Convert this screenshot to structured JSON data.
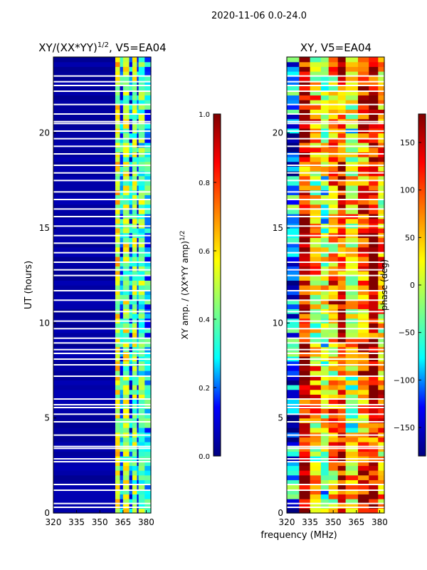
{
  "figure": {
    "suptitle": "2020-11-06 0.0-24.0",
    "shared_ylabel": "UT (hours)",
    "shared_xlabel": "frequency (MHz)"
  },
  "colors": {
    "jet_stops": [
      "#000080",
      "#0000ff",
      "#00ffff",
      "#80ff80",
      "#ffff00",
      "#ff8000",
      "#ff0000",
      "#800000"
    ],
    "gap_color": "#ffffff",
    "axis_color": "#000000"
  },
  "chart_data": [
    {
      "type": "heatmap",
      "title": "XY/(XX*YY)",
      "title_exponent": "1/2",
      "title_suffix": ", V5=EA04",
      "xlabel": "",
      "ylabel": "UT (hours)",
      "xlim": [
        320,
        383
      ],
      "ylim": [
        0,
        24
      ],
      "x_ticks": [
        320,
        335,
        350,
        365,
        380
      ],
      "y_ticks": [
        0,
        5,
        10,
        15,
        20
      ],
      "colormap": "jet",
      "colorbar": {
        "label": "XY amp. / (XX*YY amp)",
        "label_exponent": "1/2",
        "range": [
          0.0,
          1.0
        ],
        "ticks": [
          "0.0",
          "0.2",
          "0.4",
          "0.6",
          "0.8",
          "1.0"
        ]
      },
      "freq_band_values": [
        {
          "from": 320,
          "to": 360,
          "value": 0.04
        },
        {
          "from": 360,
          "to": 363,
          "value": 0.55
        },
        {
          "from": 363,
          "to": 365,
          "value": 0.25
        },
        {
          "from": 365,
          "to": 369,
          "value": 0.48
        },
        {
          "from": 369,
          "to": 371,
          "value": 0.22
        },
        {
          "from": 371,
          "to": 374,
          "value": 0.45
        },
        {
          "from": 374,
          "to": 375,
          "value": 0.2
        },
        {
          "from": 375,
          "to": 379,
          "value": 0.4
        },
        {
          "from": 379,
          "to": 383,
          "value": 0.28
        }
      ]
    },
    {
      "type": "heatmap",
      "title": "XY, V5=EA04",
      "xlabel": "frequency (MHz)",
      "ylabel": "",
      "xlim": [
        320,
        383
      ],
      "ylim": [
        0,
        24
      ],
      "x_ticks": [
        320,
        335,
        350,
        365,
        380
      ],
      "y_ticks": [
        0,
        5,
        10,
        15,
        20
      ],
      "colormap": "jet",
      "colorbar": {
        "label": "phase (deg)",
        "range": [
          -180,
          180
        ],
        "ticks": [
          "150",
          "100",
          "50",
          "0",
          "−50",
          "−100",
          "−150"
        ],
        "tick_values": [
          150,
          100,
          50,
          0,
          -50,
          -100,
          -150
        ]
      },
      "freq_band_phase": [
        {
          "from": 320,
          "to": 328,
          "value": -110
        },
        {
          "from": 328,
          "to": 335,
          "value": 140
        },
        {
          "from": 335,
          "to": 342,
          "value": 40
        },
        {
          "from": 342,
          "to": 347,
          "value": -20
        },
        {
          "from": 347,
          "to": 353,
          "value": 60
        },
        {
          "from": 353,
          "to": 358,
          "value": 120
        },
        {
          "from": 358,
          "to": 366,
          "value": 10
        },
        {
          "from": 366,
          "to": 373,
          "value": 100
        },
        {
          "from": 373,
          "to": 379,
          "value": 150
        },
        {
          "from": 379,
          "to": 383,
          "value": 70
        }
      ]
    }
  ],
  "gap_rows_ut": [
    0.3,
    0.5,
    1.2,
    1.5,
    2.7,
    2.85,
    3.4,
    3.5,
    4.1,
    4.8,
    5.2,
    5.55,
    5.7,
    6.0,
    7.2,
    7.8,
    8.1,
    8.4,
    8.6,
    8.95,
    9.2,
    9.7,
    10.1,
    10.6,
    11.2,
    11.7,
    12.5,
    12.8,
    13.2,
    13.7,
    14.2,
    14.6,
    15.1,
    15.6,
    16.0,
    16.5,
    16.9,
    17.5,
    17.9,
    18.3,
    18.9,
    19.3,
    19.7,
    20.1,
    20.5,
    20.6,
    21.0,
    21.5,
    22.2,
    22.5,
    22.7,
    23.0
  ]
}
